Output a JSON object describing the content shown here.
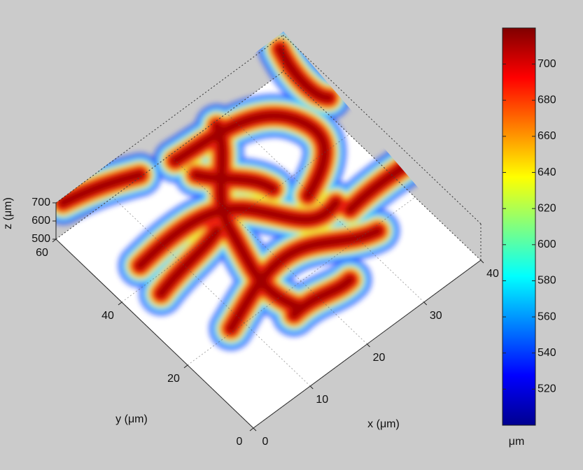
{
  "chart_data": {
    "type": "surface3d",
    "xlabel": "x (μm)",
    "ylabel": "y (μm)",
    "zlabel": "z (μm)",
    "xlim": [
      0,
      40
    ],
    "xticks": [
      0,
      10,
      20,
      30,
      40
    ],
    "ylim": [
      0,
      60
    ],
    "yticks": [
      0,
      20,
      40,
      60
    ],
    "zlim": [
      500,
      700
    ],
    "zticks": [
      500,
      600,
      700
    ],
    "colorbar": {
      "label": "μm",
      "colormap": "jet",
      "clim": [
        500,
        720
      ],
      "ticks": [
        520,
        540,
        560,
        580,
        600,
        620,
        640,
        660,
        680,
        700
      ]
    }
  }
}
